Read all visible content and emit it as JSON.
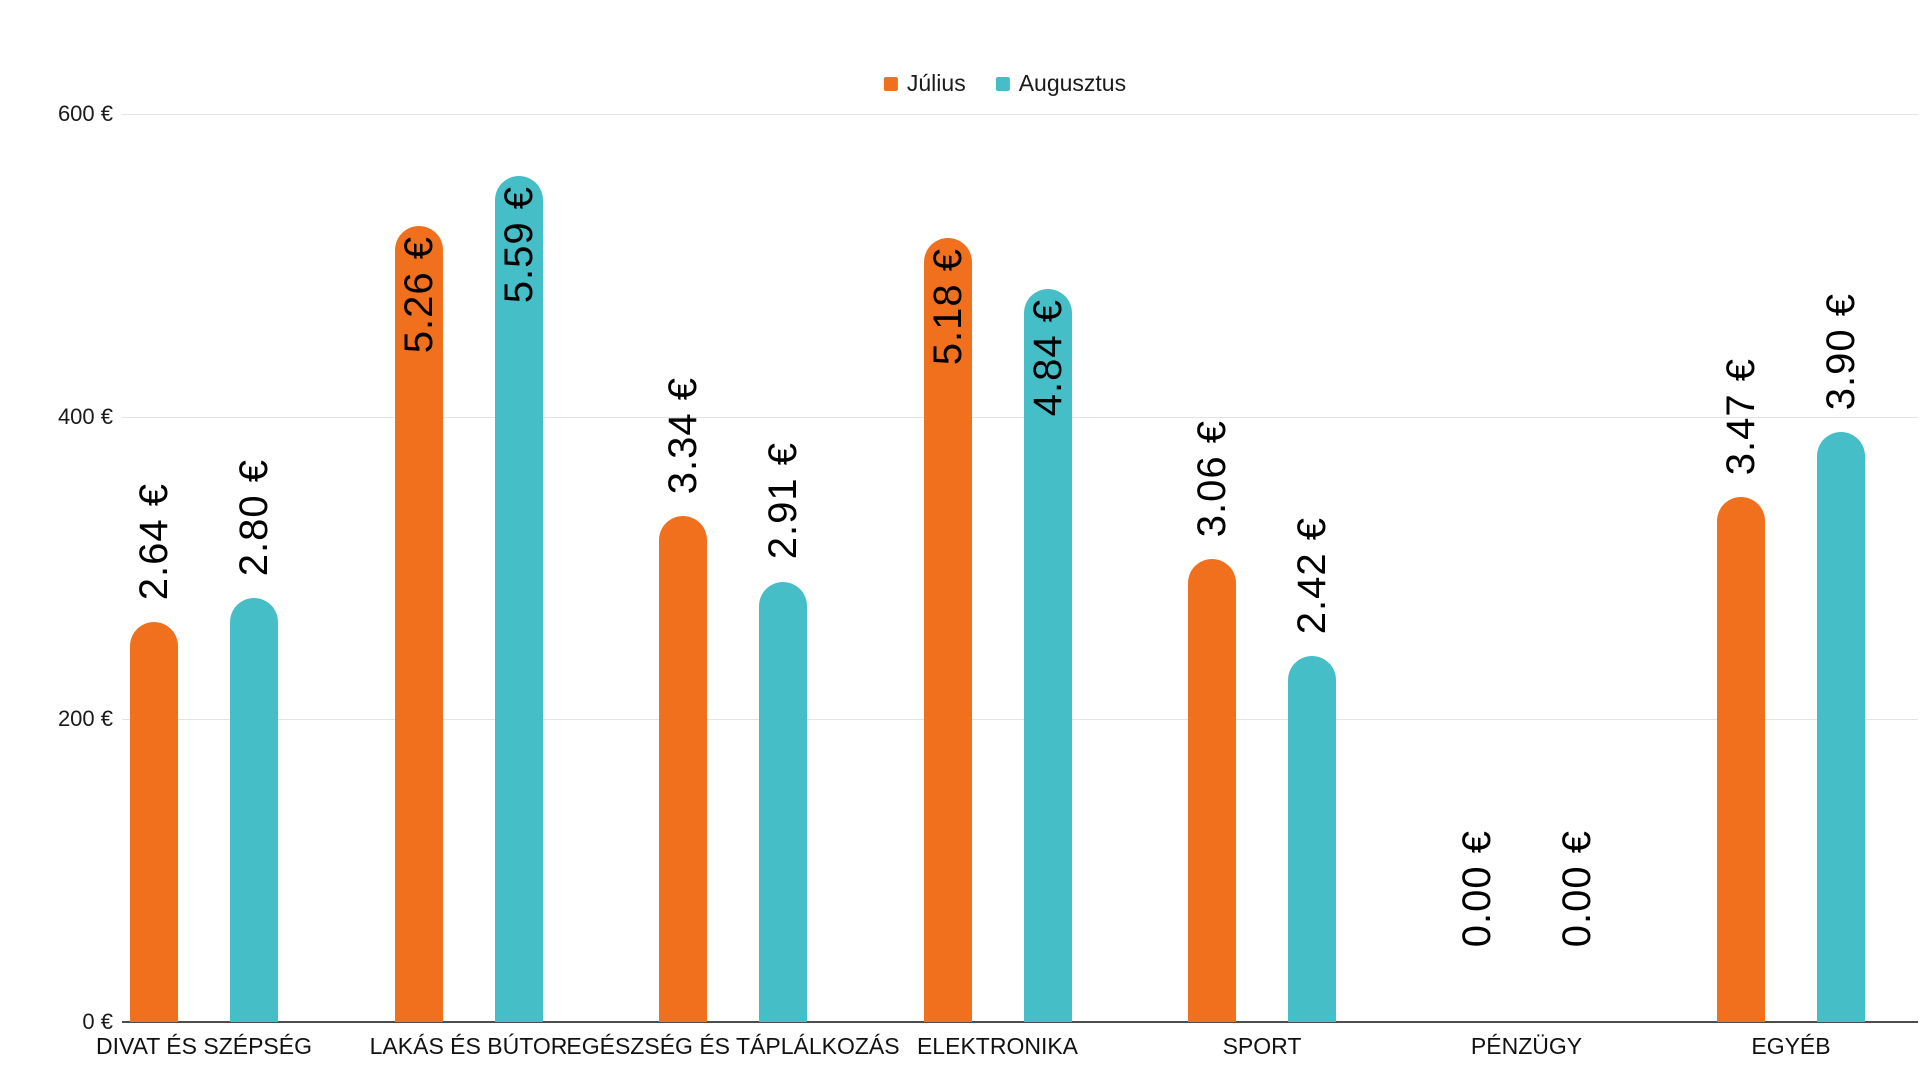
{
  "chart_data": {
    "type": "bar",
    "categories": [
      "DIVAT ÉS SZÉPSÉG",
      "LAKÁS ÉS BÚTOR",
      "EGÉSZSÉG ÉS TÁPLÁLKOZÁS",
      "ELEKTRONIKA",
      "SPORT",
      "PÉNZÜGY",
      "EGYÉB"
    ],
    "series": [
      {
        "name": "Július",
        "color": "#F0701E",
        "values": [
          2.64,
          5.26,
          3.34,
          5.18,
          3.06,
          0.0,
          3.47
        ]
      },
      {
        "name": "Augusztus",
        "color": "#45BEC8",
        "values": [
          2.8,
          5.59,
          2.91,
          4.84,
          2.42,
          0.0,
          3.9
        ]
      }
    ],
    "data_labels": {
      "julius": [
        "2.64 €",
        "5.26 €",
        "3.34 €",
        "5.18 €",
        "3.06 €",
        "0.00 €",
        "3.47 €"
      ],
      "augusztus": [
        "2.80 €",
        "5.59 €",
        "2.91 €",
        "4.84 €",
        "2.42 €",
        "0.00 €",
        "3.90 €"
      ]
    },
    "xlabel": "",
    "ylabel": "",
    "axis": {
      "ticks": [
        {
          "value": 0,
          "label": "0 €"
        },
        {
          "value": 200,
          "label": "200 €"
        },
        {
          "value": 400,
          "label": "400 €"
        },
        {
          "value": 600,
          "label": "600 €"
        }
      ],
      "max": 600,
      "bar_unit_multiplier": 100
    },
    "grid": true,
    "legend_position": "top",
    "colors": {
      "gridline": "#e3e3e3",
      "baseline": "#4d4d4d",
      "axis_text": "#1a1a1a",
      "data_label": "#000000",
      "background": "#ffffff"
    }
  }
}
